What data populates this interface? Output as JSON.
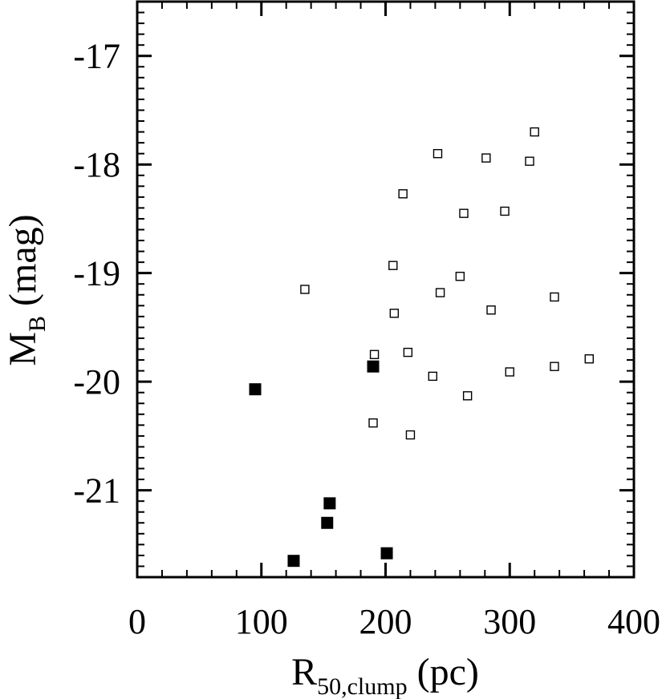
{
  "chart_data": {
    "type": "scatter",
    "xlabel": "R50,clump (pc)",
    "xlabel_main": "R",
    "xlabel_sub": "50,clump",
    "xlabel_unit": " (pc)",
    "ylabel": "MB (mag)",
    "ylabel_main": "M",
    "ylabel_sub": "B",
    "ylabel_unit": " (mag)",
    "xlim": [
      0,
      400
    ],
    "ylim": [
      -21.8,
      -16.5
    ],
    "y_inverted": true,
    "x_ticks": [
      0,
      100,
      200,
      300,
      400
    ],
    "x_tick_labels": [
      "0",
      "100",
      "200",
      "300",
      "400"
    ],
    "y_ticks": [
      -17,
      -18,
      -19,
      -20,
      -21
    ],
    "y_tick_labels": [
      "-17",
      "-18",
      "-19",
      "-20",
      "-21"
    ],
    "grid": false,
    "series": [
      {
        "marker": "open-square",
        "points": [
          {
            "x": 320,
            "y": -17.7
          },
          {
            "x": 242,
            "y": -17.9
          },
          {
            "x": 281,
            "y": -17.94
          },
          {
            "x": 316,
            "y": -17.97
          },
          {
            "x": 214,
            "y": -18.27
          },
          {
            "x": 263,
            "y": -18.45
          },
          {
            "x": 296,
            "y": -18.43
          },
          {
            "x": 206,
            "y": -18.93
          },
          {
            "x": 260,
            "y": -19.03
          },
          {
            "x": 135,
            "y": -19.15
          },
          {
            "x": 244,
            "y": -19.18
          },
          {
            "x": 336,
            "y": -19.22
          },
          {
            "x": 207,
            "y": -19.37
          },
          {
            "x": 285,
            "y": -19.34
          },
          {
            "x": 191,
            "y": -19.75
          },
          {
            "x": 218,
            "y": -19.73
          },
          {
            "x": 364,
            "y": -19.79
          },
          {
            "x": 336,
            "y": -19.86
          },
          {
            "x": 238,
            "y": -19.95
          },
          {
            "x": 300,
            "y": -19.91
          },
          {
            "x": 266,
            "y": -20.13
          },
          {
            "x": 190,
            "y": -20.38
          },
          {
            "x": 220,
            "y": -20.49
          }
        ]
      },
      {
        "marker": "filled-square",
        "points": [
          {
            "x": 95,
            "y": -20.07
          },
          {
            "x": 190,
            "y": -19.86
          },
          {
            "x": 155,
            "y": -21.12
          },
          {
            "x": 153,
            "y": -21.3
          },
          {
            "x": 126,
            "y": -21.65
          },
          {
            "x": 201,
            "y": -21.58
          }
        ]
      }
    ]
  }
}
